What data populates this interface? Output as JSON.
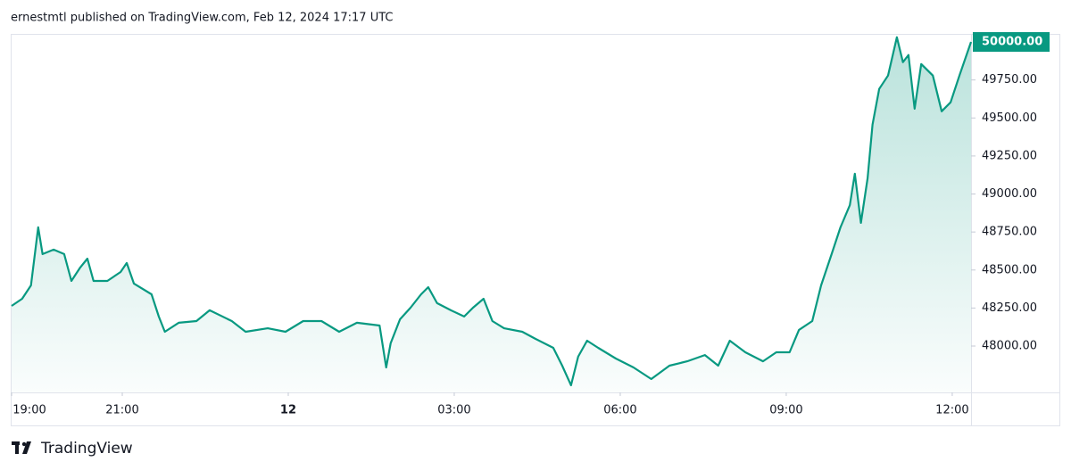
{
  "page": {
    "published": "ernestmtl published on TradingView.com, Feb 12, 2024 17:17 UTC",
    "brand": "TradingView"
  },
  "chart_data": {
    "type": "area",
    "color": "#089981",
    "x": [
      0,
      0.19,
      0.35,
      0.48,
      0.56,
      0.76,
      0.95,
      1.08,
      1.24,
      1.37,
      1.48,
      1.73,
      1.97,
      2.08,
      2.21,
      2.53,
      2.66,
      2.77,
      3.02,
      3.34,
      3.58,
      3.98,
      4.23,
      4.63,
      4.95,
      5.27,
      5.6,
      5.92,
      6.24,
      6.65,
      6.77,
      6.85,
      7.02,
      7.21,
      7.4,
      7.53,
      7.69,
      7.94,
      8.18,
      8.34,
      8.53,
      8.69,
      8.9,
      9.23,
      9.47,
      9.79,
      9.95,
      10.11,
      10.24,
      10.4,
      10.6,
      10.92,
      11.24,
      11.56,
      11.89,
      12.21,
      12.53,
      12.77,
      12.98,
      13.26,
      13.58,
      13.82,
      14.06,
      14.23,
      14.47,
      14.63,
      14.82,
      14.98,
      15.15,
      15.24,
      15.35,
      15.47,
      15.56,
      15.68,
      15.84,
      16.0,
      16.11,
      16.21,
      16.32,
      16.44,
      16.65,
      16.81,
      16.97,
      17.13,
      17.34
    ],
    "values": [
      48264,
      48311,
      48399,
      48781,
      48605,
      48634,
      48605,
      48428,
      48517,
      48575,
      48428,
      48428,
      48487,
      48546,
      48411,
      48340,
      48194,
      48094,
      48153,
      48164,
      48235,
      48164,
      48094,
      48117,
      48094,
      48164,
      48164,
      48094,
      48153,
      48135,
      47859,
      48018,
      48176,
      48252,
      48340,
      48387,
      48282,
      48235,
      48194,
      48252,
      48311,
      48164,
      48117,
      48094,
      48047,
      47988,
      47871,
      47742,
      47930,
      48035,
      47988,
      47918,
      47859,
      47783,
      47871,
      47900,
      47941,
      47871,
      48035,
      47959,
      47900,
      47959,
      47959,
      48106,
      48164,
      48399,
      48605,
      48781,
      48927,
      49133,
      48810,
      49104,
      49456,
      49691,
      49779,
      50031,
      49867,
      49914,
      49561,
      49855,
      49779,
      49544,
      49603,
      49779,
      50000
    ],
    "xlim": [
      0,
      17.34
    ],
    "xticks": [
      {
        "value": 0,
        "label": "19:00"
      },
      {
        "value": 2,
        "label": "21:00"
      },
      {
        "value": 5,
        "label": "12"
      },
      {
        "value": 8,
        "label": "03:00"
      },
      {
        "value": 11,
        "label": "06:00"
      },
      {
        "value": 14,
        "label": "09:00"
      },
      {
        "value": 17,
        "label": "12:00"
      }
    ],
    "ylim": [
      47695,
      50053
    ],
    "yticks": [
      {
        "value": 48000,
        "label": "48000.00"
      },
      {
        "value": 48250,
        "label": "48250.00"
      },
      {
        "value": 48500,
        "label": "48500.00"
      },
      {
        "value": 48750,
        "label": "48750.00"
      },
      {
        "value": 49000,
        "label": "49000.00"
      },
      {
        "value": 49250,
        "label": "49250.00"
      },
      {
        "value": 49500,
        "label": "49500.00"
      },
      {
        "value": 49750,
        "label": "49750.00"
      }
    ],
    "last_price": {
      "value": 50000,
      "label": "50000.00"
    }
  }
}
